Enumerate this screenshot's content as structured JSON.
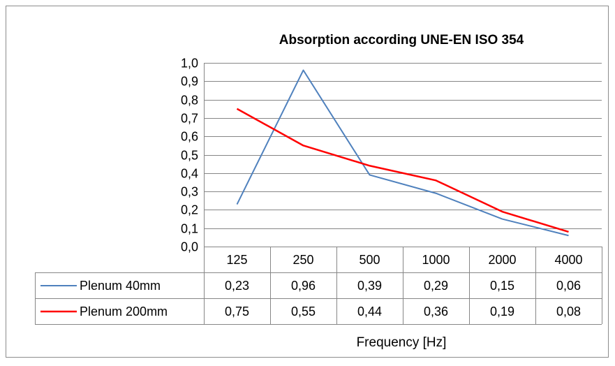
{
  "chart_data": {
    "type": "line",
    "title": "Absorption according UNE-EN ISO 354",
    "xlabel": "Frequency [Hz]",
    "ylabel": "",
    "categories": [
      "125",
      "250",
      "500",
      "1000",
      "2000",
      "4000"
    ],
    "ylim": [
      0,
      1.0
    ],
    "ytick_labels": [
      "0,0",
      "0,1",
      "0,2",
      "0,3",
      "0,4",
      "0,5",
      "0,6",
      "0,7",
      "0,8",
      "0,9",
      "1,0"
    ],
    "grid": true,
    "legend_position": "data-table",
    "series": [
      {
        "name": "Plenum 40mm",
        "color": "#4f81bd",
        "values": [
          0.23,
          0.96,
          0.39,
          0.29,
          0.15,
          0.06
        ],
        "value_labels": [
          "0,23",
          "0,96",
          "0,39",
          "0,29",
          "0,15",
          "0,06"
        ]
      },
      {
        "name": "Plenum 200mm",
        "color": "#ff0000",
        "values": [
          0.75,
          0.55,
          0.44,
          0.36,
          0.19,
          0.08
        ],
        "value_labels": [
          "0,75",
          "0,55",
          "0,44",
          "0,36",
          "0,19",
          "0,08"
        ]
      }
    ]
  }
}
